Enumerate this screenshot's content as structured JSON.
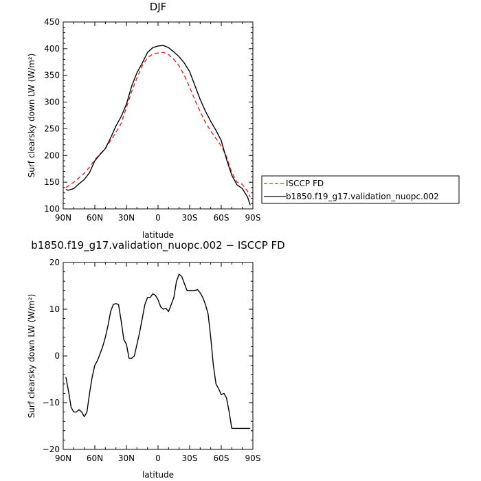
{
  "chart_data": [
    {
      "type": "line",
      "title": "DJF",
      "xlabel": "latitude",
      "ylabel": "Surf clearsky down LW (W/m²)",
      "xlim": [
        -90,
        90
      ],
      "ylim": [
        100,
        450
      ],
      "x_ticks": [
        "90N",
        "60N",
        "30N",
        "0",
        "30S",
        "60S",
        "90S"
      ],
      "y_ticks": [
        "100",
        "150",
        "200",
        "250",
        "300",
        "350",
        "400",
        "450"
      ],
      "grid": false,
      "legend_placement": "outside-right",
      "series": [
        {
          "name": "ISCCP FD",
          "color": "#e8201e",
          "dash": "dashed",
          "x": [
            -87.5,
            -85,
            -80,
            -75,
            -70,
            -65,
            -60,
            -55,
            -50,
            -45,
            -40,
            -35,
            -30,
            -25,
            -20,
            -15,
            -10,
            -5,
            0,
            5,
            10,
            15,
            20,
            25,
            30,
            35,
            40,
            45,
            50,
            55,
            60,
            65,
            70,
            75,
            80,
            85,
            87.5
          ],
          "values": [
            140,
            143,
            150,
            158,
            167,
            178,
            192,
            203,
            213,
            228,
            243,
            260,
            290,
            320,
            345,
            368,
            383,
            390,
            392,
            393,
            389,
            380,
            368,
            350,
            328,
            304,
            282,
            262,
            246,
            232,
            218,
            198,
            168,
            150,
            146,
            133,
            122
          ]
        },
        {
          "name": "b1850.f19_g17.validation_nuopc.002",
          "color": "#000000",
          "dash": "solid",
          "x": [
            -87.5,
            -85,
            -80,
            -75,
            -70,
            -65,
            -60,
            -55,
            -50,
            -45,
            -40,
            -35,
            -30,
            -25,
            -20,
            -15,
            -10,
            -5,
            0,
            5,
            10,
            15,
            20,
            25,
            30,
            35,
            40,
            45,
            50,
            55,
            60,
            65,
            70,
            75,
            80,
            85,
            87.5
          ],
          "values": [
            136,
            135,
            138,
            147,
            155,
            168,
            190,
            202,
            213,
            233,
            255,
            273,
            296,
            330,
            355,
            373,
            393,
            402,
            405,
            406,
            402,
            394,
            385,
            373,
            357,
            331,
            305,
            283,
            264,
            247,
            228,
            193,
            163,
            145,
            138,
            122,
            107
          ]
        }
      ]
    },
    {
      "type": "line",
      "title": "b1850.f19_g17.validation_nuopc.002 − ISCCP FD",
      "xlabel": "latitude",
      "ylabel": "Surf clearsky down LW (W/m²)",
      "xlim": [
        -90,
        90
      ],
      "ylim": [
        -20,
        20
      ],
      "x_ticks": [
        "90N",
        "60N",
        "30N",
        "0",
        "30S",
        "60S",
        "90S"
      ],
      "y_ticks": [
        "−20",
        "−10",
        "0",
        "10",
        "20"
      ],
      "grid": false,
      "series": [
        {
          "color": "#000000",
          "dash": "solid",
          "x": [
            -87.5,
            -85,
            -82.5,
            -80,
            -77.5,
            -75,
            -72.5,
            -70,
            -67.5,
            -65,
            -62.5,
            -60,
            -57.5,
            -55,
            -52.5,
            -50,
            -47.5,
            -45,
            -42.5,
            -40,
            -37.5,
            -35,
            -32.5,
            -30,
            -27.5,
            -25,
            -22.5,
            -20,
            -17.5,
            -15,
            -12.5,
            -10,
            -7.5,
            -5,
            -2.5,
            0,
            2.5,
            5,
            7.5,
            10,
            12.5,
            15,
            17.5,
            20,
            22.5,
            25,
            27.5,
            30,
            32.5,
            35,
            37.5,
            40,
            42.5,
            45,
            47.5,
            50,
            52.5,
            55,
            57.5,
            60,
            62.5,
            65,
            67.5,
            70,
            72.5,
            75,
            77.5,
            80,
            82.5,
            85,
            87.5
          ],
          "values": [
            -4.5,
            -7.5,
            -11,
            -12,
            -12,
            -11.5,
            -12,
            -13,
            -12,
            -8,
            -4.5,
            -2,
            -1,
            0.5,
            2,
            4,
            6.5,
            9.5,
            11,
            11.2,
            11,
            7.5,
            3.5,
            2.5,
            -0.5,
            -0.5,
            0,
            2.5,
            5,
            8,
            11,
            12.5,
            12.5,
            13.3,
            13,
            12,
            10.5,
            10,
            10.2,
            9.5,
            11,
            12.5,
            16,
            17.5,
            17,
            15.5,
            14,
            14,
            14,
            14,
            14.2,
            13.5,
            12.5,
            11,
            9,
            4,
            -2,
            -6,
            -7,
            -8.3,
            -8,
            -9,
            -12,
            -15.5,
            -15.5,
            -15.5,
            -15.5,
            -15.5,
            -15.5,
            -15.5,
            -15.5
          ]
        }
      ]
    }
  ]
}
